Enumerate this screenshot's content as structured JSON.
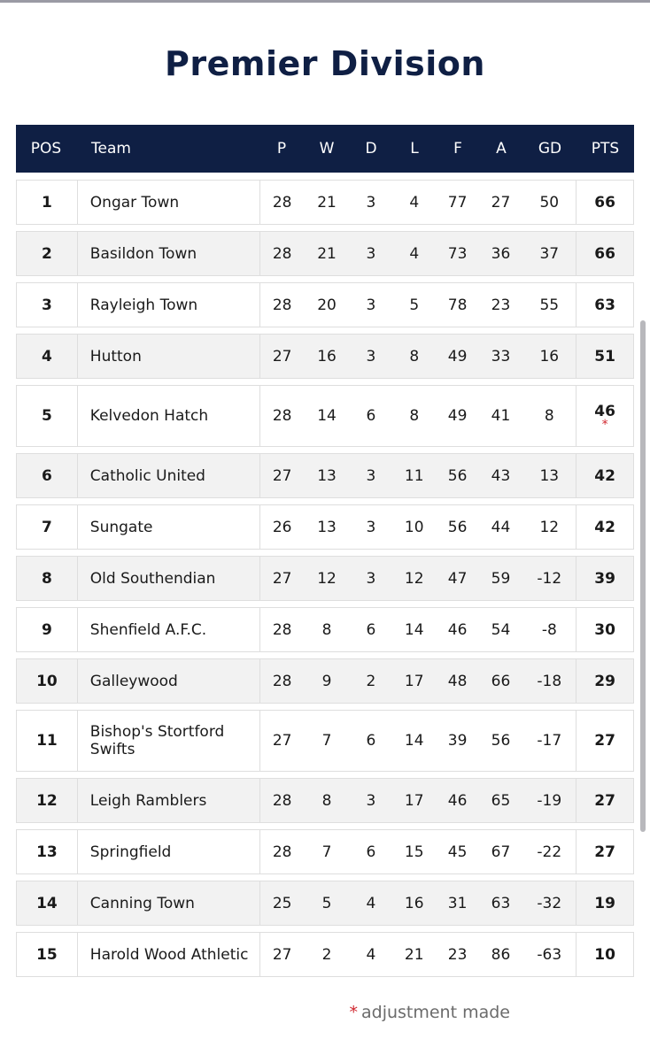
{
  "title": "Premier Division",
  "table": {
    "headers": {
      "pos": "POS",
      "team": "Team",
      "p": "P",
      "w": "W",
      "d": "D",
      "l": "L",
      "f": "F",
      "a": "A",
      "gd": "GD",
      "pts": "PTS"
    },
    "rows": [
      {
        "pos": "1",
        "team": "Ongar Town",
        "p": "28",
        "w": "21",
        "d": "3",
        "l": "4",
        "f": "77",
        "a": "27",
        "gd": "50",
        "pts": "66",
        "adjusted": false
      },
      {
        "pos": "2",
        "team": "Basildon Town",
        "p": "28",
        "w": "21",
        "d": "3",
        "l": "4",
        "f": "73",
        "a": "36",
        "gd": "37",
        "pts": "66",
        "adjusted": false
      },
      {
        "pos": "3",
        "team": "Rayleigh Town",
        "p": "28",
        "w": "20",
        "d": "3",
        "l": "5",
        "f": "78",
        "a": "23",
        "gd": "55",
        "pts": "63",
        "adjusted": false
      },
      {
        "pos": "4",
        "team": "Hutton",
        "p": "27",
        "w": "16",
        "d": "3",
        "l": "8",
        "f": "49",
        "a": "33",
        "gd": "16",
        "pts": "51",
        "adjusted": false
      },
      {
        "pos": "5",
        "team": "Kelvedon Hatch",
        "p": "28",
        "w": "14",
        "d": "6",
        "l": "8",
        "f": "49",
        "a": "41",
        "gd": "8",
        "pts": "46",
        "adjusted": true
      },
      {
        "pos": "6",
        "team": "Catholic United",
        "p": "27",
        "w": "13",
        "d": "3",
        "l": "11",
        "f": "56",
        "a": "43",
        "gd": "13",
        "pts": "42",
        "adjusted": false
      },
      {
        "pos": "7",
        "team": "Sungate",
        "p": "26",
        "w": "13",
        "d": "3",
        "l": "10",
        "f": "56",
        "a": "44",
        "gd": "12",
        "pts": "42",
        "adjusted": false
      },
      {
        "pos": "8",
        "team": "Old Southendian",
        "p": "27",
        "w": "12",
        "d": "3",
        "l": "12",
        "f": "47",
        "a": "59",
        "gd": "-12",
        "pts": "39",
        "adjusted": false
      },
      {
        "pos": "9",
        "team": "Shenfield A.F.C.",
        "p": "28",
        "w": "8",
        "d": "6",
        "l": "14",
        "f": "46",
        "a": "54",
        "gd": "-8",
        "pts": "30",
        "adjusted": false
      },
      {
        "pos": "10",
        "team": "Galleywood",
        "p": "28",
        "w": "9",
        "d": "2",
        "l": "17",
        "f": "48",
        "a": "66",
        "gd": "-18",
        "pts": "29",
        "adjusted": false
      },
      {
        "pos": "11",
        "team": "Bishop's Stortford Swifts",
        "p": "27",
        "w": "7",
        "d": "6",
        "l": "14",
        "f": "39",
        "a": "56",
        "gd": "-17",
        "pts": "27",
        "adjusted": false
      },
      {
        "pos": "12",
        "team": "Leigh Ramblers",
        "p": "28",
        "w": "8",
        "d": "3",
        "l": "17",
        "f": "46",
        "a": "65",
        "gd": "-19",
        "pts": "27",
        "adjusted": false
      },
      {
        "pos": "13",
        "team": "Springfield",
        "p": "28",
        "w": "7",
        "d": "6",
        "l": "15",
        "f": "45",
        "a": "67",
        "gd": "-22",
        "pts": "27",
        "adjusted": false
      },
      {
        "pos": "14",
        "team": "Canning Town",
        "p": "25",
        "w": "5",
        "d": "4",
        "l": "16",
        "f": "31",
        "a": "63",
        "gd": "-32",
        "pts": "19",
        "adjusted": false
      },
      {
        "pos": "15",
        "team": "Harold Wood Athletic",
        "p": "27",
        "w": "2",
        "d": "4",
        "l": "21",
        "f": "23",
        "a": "86",
        "gd": "-63",
        "pts": "10",
        "adjusted": false
      }
    ]
  },
  "footnote": {
    "marker": "*",
    "text": "adjustment made"
  },
  "colors": {
    "header_bg": "#0f1f44",
    "title": "#0f1f44",
    "adjustment_marker": "#d0262e",
    "row_alt_bg": "#f2f2f2"
  }
}
